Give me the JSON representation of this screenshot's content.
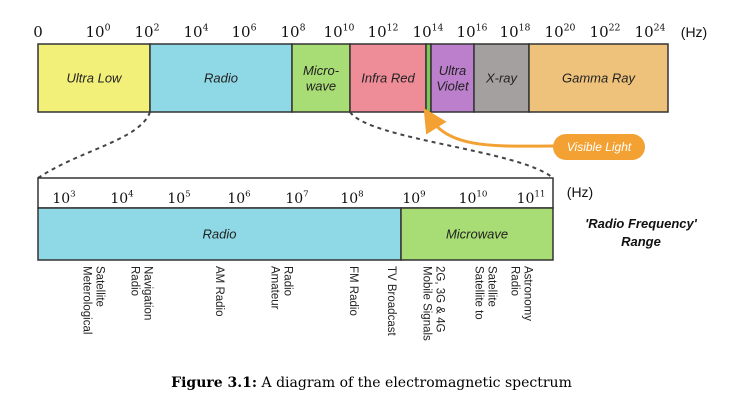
{
  "top_scale": {
    "zero_label": "0",
    "ticks": [
      {
        "base": "10",
        "exp": "0"
      },
      {
        "base": "10",
        "exp": "2"
      },
      {
        "base": "10",
        "exp": "4"
      },
      {
        "base": "10",
        "exp": "6"
      },
      {
        "base": "10",
        "exp": "8"
      },
      {
        "base": "10",
        "exp": "10"
      },
      {
        "base": "10",
        "exp": "12"
      },
      {
        "base": "10",
        "exp": "14"
      },
      {
        "base": "10",
        "exp": "16"
      },
      {
        "base": "10",
        "exp": "18"
      },
      {
        "base": "10",
        "exp": "20"
      },
      {
        "base": "10",
        "exp": "22"
      },
      {
        "base": "10",
        "exp": "24"
      }
    ],
    "unit": "(Hz)"
  },
  "spectrum_bands": [
    {
      "lines": [
        "Ultra Low"
      ],
      "color": "#f3f07a"
    },
    {
      "lines": [
        "Radio"
      ],
      "color": "#8fd9e6"
    },
    {
      "lines": [
        "Micro-",
        "wave"
      ],
      "color": "#a8dc74"
    },
    {
      "lines": [
        "Infra Red"
      ],
      "color": "#ee8c98"
    },
    {
      "lines": [
        ""
      ],
      "color": "#7ec45a"
    },
    {
      "lines": [
        "Ultra",
        "Violet"
      ],
      "color": "#bb7fcb"
    },
    {
      "lines": [
        "X-ray"
      ],
      "color": "#a4a09f"
    },
    {
      "lines": [
        "Gamma Ray"
      ],
      "color": "#efc27c"
    }
  ],
  "visible_light": {
    "label": "Visible Light",
    "color": "#f2a132"
  },
  "bottom_scale": {
    "ticks": [
      {
        "base": "10",
        "exp": "3"
      },
      {
        "base": "10",
        "exp": "4"
      },
      {
        "base": "10",
        "exp": "5"
      },
      {
        "base": "10",
        "exp": "6"
      },
      {
        "base": "10",
        "exp": "7"
      },
      {
        "base": "10",
        "exp": "8"
      },
      {
        "base": "10",
        "exp": "9"
      },
      {
        "base": "10",
        "exp": "10"
      },
      {
        "base": "10",
        "exp": "11"
      }
    ],
    "unit": "(Hz)"
  },
  "rf_bands": [
    {
      "label": "Radio",
      "color": "#8fd9e6"
    },
    {
      "label": "Microwave",
      "color": "#a8dc74"
    }
  ],
  "rf_range_title": [
    "'Radio Frequency'",
    "Range"
  ],
  "applications": [
    {
      "lines": [
        "Meterological",
        "Satellite"
      ]
    },
    {
      "lines": [
        "Radio",
        "Navigation"
      ]
    },
    {
      "lines": [
        "AM Radio"
      ]
    },
    {
      "lines": [
        "Amateur",
        "Radio"
      ]
    },
    {
      "lines": [
        "FM Radio"
      ]
    },
    {
      "lines": [
        "TV Broadcast"
      ]
    },
    {
      "lines": [
        "Mobile Signals",
        "2G, 3G & 4G"
      ]
    },
    {
      "lines": [
        "Satellite to",
        "Satellite"
      ]
    },
    {
      "lines": [
        "Radio",
        "Astronomy"
      ]
    }
  ],
  "caption": {
    "label": "Figure 3.1:",
    "text": " A diagram of the electromagnetic spectrum"
  }
}
